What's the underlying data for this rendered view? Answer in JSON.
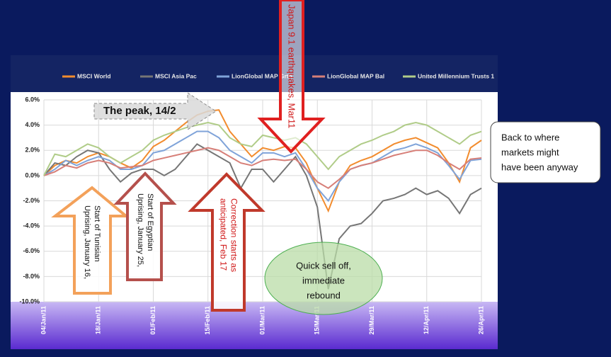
{
  "chart_data": {
    "type": "line",
    "categories": [
      "04/Jan/11",
      null,
      null,
      null,
      null,
      "18/Jan/11",
      null,
      null,
      null,
      null,
      "01/Feb/11",
      null,
      null,
      null,
      null,
      "15/Feb/11",
      null,
      null,
      null,
      null,
      "01/Mar/11",
      null,
      null,
      null,
      null,
      "15/Mar/11",
      null,
      null,
      null,
      null,
      "29/Mar/11",
      null,
      null,
      null,
      null,
      "12/Apr/11",
      null,
      null,
      null,
      null,
      "26/Apr/11"
    ],
    "ylim": [
      -10,
      6
    ],
    "yticks": [
      {
        "value": -10,
        "label": "-10.0%"
      },
      {
        "value": -8,
        "label": "-8.0%"
      },
      {
        "value": -6,
        "label": "-6.0%"
      },
      {
        "value": -4,
        "label": "-4.0%"
      },
      {
        "value": -2,
        "label": "-2.0%"
      },
      {
        "value": 0,
        "label": "0.0%"
      },
      {
        "value": 2,
        "label": "2.0%"
      },
      {
        "value": 4,
        "label": "4.0%"
      },
      {
        "value": 6,
        "label": "6.0%"
      }
    ],
    "grid": true,
    "series": [
      {
        "name": "MSCI World",
        "color": "#f28c2e",
        "values": [
          0,
          0.8,
          1.2,
          1.0,
          1.5,
          1.8,
          1.5,
          1.0,
          0.6,
          1.2,
          2.3,
          2.8,
          3.5,
          4.2,
          4.8,
          5.1,
          5.2,
          3.5,
          2.5,
          1.5,
          2.2,
          2.0,
          2.3,
          2.2,
          1.0,
          -1.0,
          -2.8,
          -0.5,
          0.8,
          1.2,
          1.5,
          2.0,
          2.5,
          2.8,
          3.0,
          2.6,
          2.2,
          1.0,
          -0.5,
          2.2,
          2.8
        ]
      },
      {
        "name": "MSCI Asia Pac",
        "color": "#767676",
        "values": [
          0,
          1.0,
          0.8,
          1.5,
          2.0,
          1.8,
          0.5,
          -0.5,
          0.2,
          0.5,
          0.5,
          0.0,
          0.5,
          1.5,
          2.5,
          2.0,
          1.5,
          1.0,
          -1.0,
          0.5,
          0.5,
          -0.5,
          0.5,
          1.5,
          0.0,
          -2.5,
          -9.0,
          -5.0,
          -4.0,
          -3.8,
          -3.0,
          -2.0,
          -1.8,
          -1.5,
          -1.0,
          -1.5,
          -1.2,
          -1.8,
          -3.0,
          -1.5,
          -1.0
        ]
      },
      {
        "name": "LionGlobal MAP Grth",
        "color": "#7fa3d9",
        "values": [
          0,
          0.5,
          1.2,
          0.8,
          1.2,
          1.5,
          1.2,
          0.5,
          0.5,
          0.8,
          1.8,
          2.0,
          2.5,
          3.0,
          3.5,
          3.5,
          3.0,
          2.0,
          1.5,
          1.0,
          1.8,
          1.8,
          1.5,
          1.8,
          0.5,
          -1.0,
          -2.0,
          -0.5,
          0.5,
          0.8,
          1.0,
          1.5,
          2.0,
          2.2,
          2.5,
          2.2,
          1.8,
          0.8,
          -0.3,
          1.2,
          1.3
        ]
      },
      {
        "name": "LionGlobal MAP Bal",
        "color": "#d77f78",
        "values": [
          0,
          0.3,
          0.8,
          0.6,
          1.0,
          1.2,
          1.0,
          0.6,
          0.7,
          0.8,
          1.2,
          1.4,
          1.6,
          1.8,
          2.0,
          2.2,
          2.0,
          1.5,
          1.0,
          0.8,
          1.2,
          1.3,
          1.2,
          1.3,
          0.5,
          -0.5,
          -1.0,
          -0.3,
          0.5,
          0.8,
          1.0,
          1.3,
          1.6,
          1.8,
          2.0,
          2.0,
          1.6,
          1.0,
          0.5,
          1.3,
          1.4
        ]
      },
      {
        "name": "United Millennium Trusts 1",
        "color": "#b0cc88",
        "values": [
          0,
          1.7,
          1.5,
          2.0,
          2.5,
          2.2,
          1.5,
          1.0,
          1.5,
          2.0,
          2.8,
          3.2,
          3.5,
          3.8,
          4.0,
          4.2,
          4.0,
          3.0,
          2.5,
          2.3,
          3.2,
          3.0,
          2.8,
          3.0,
          2.5,
          1.5,
          0.5,
          1.5,
          2.0,
          2.5,
          2.8,
          3.2,
          3.5,
          4.0,
          4.2,
          4.0,
          3.5,
          3.0,
          2.5,
          3.2,
          3.5
        ]
      }
    ],
    "annotations": {
      "peak": "The peak, 14/2",
      "japan": "Japan 9.1 earthquakes, Mar11",
      "tunisia": [
        "Start of Tunisian",
        "Uprising, January 16,"
      ],
      "egypt": [
        "Start of Egyptian",
        "Uprising, January 25,"
      ],
      "correction": [
        "Correction starts as",
        "anticipated, Feb 17"
      ],
      "selloff": [
        "Quick sell off,",
        "immediate",
        "rebound"
      ],
      "back": [
        "Back to where",
        "markets might",
        "have been anyway"
      ]
    }
  }
}
